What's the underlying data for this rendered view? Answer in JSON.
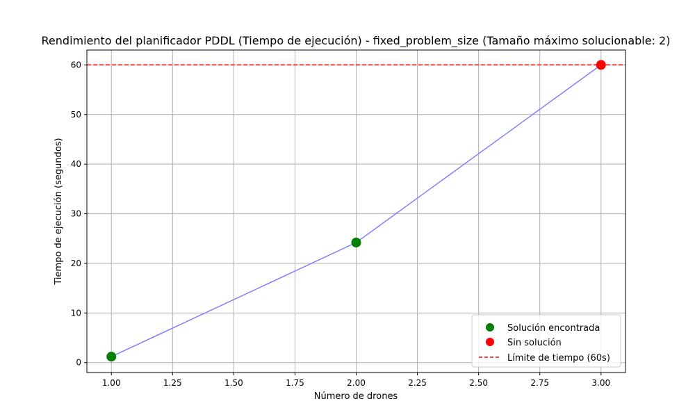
{
  "chart_data": {
    "type": "line",
    "title": "Rendimiento del planificador PDDL (Tiempo de ejecución) - fixed_problem_size (Tamaño máximo solucionable: 2)",
    "xlabel": "Número de drones",
    "ylabel": "Tiempo de ejecución (segundos)",
    "xlim": [
      0.9,
      3.1
    ],
    "ylim": [
      -2,
      63
    ],
    "xticks": [
      1.0,
      1.25,
      1.5,
      1.75,
      2.0,
      2.25,
      2.5,
      2.75,
      3.0
    ],
    "xtick_labels": [
      "1.00",
      "1.25",
      "1.50",
      "1.75",
      "2.00",
      "2.25",
      "2.50",
      "2.75",
      "3.00"
    ],
    "yticks": [
      0,
      10,
      20,
      30,
      40,
      50,
      60
    ],
    "ytick_labels": [
      "0",
      "10",
      "20",
      "30",
      "40",
      "50",
      "60"
    ],
    "grid": true,
    "line": {
      "x": [
        1,
        2,
        3
      ],
      "y": [
        1.2,
        24.2,
        60.0
      ],
      "color": "#7f7fff"
    },
    "series": [
      {
        "name": "Solución encontrada",
        "x": [
          1,
          2
        ],
        "y": [
          1.2,
          24.2
        ],
        "color": "#008000"
      },
      {
        "name": "Sin solución",
        "x": [
          3
        ],
        "y": [
          60.0
        ],
        "color": "#ff0000"
      }
    ],
    "reference_line": {
      "name": "Límite de tiempo (60s)",
      "y": 60,
      "color": "#ff0000",
      "style": "dashed"
    },
    "legend_position": "lower-right"
  }
}
